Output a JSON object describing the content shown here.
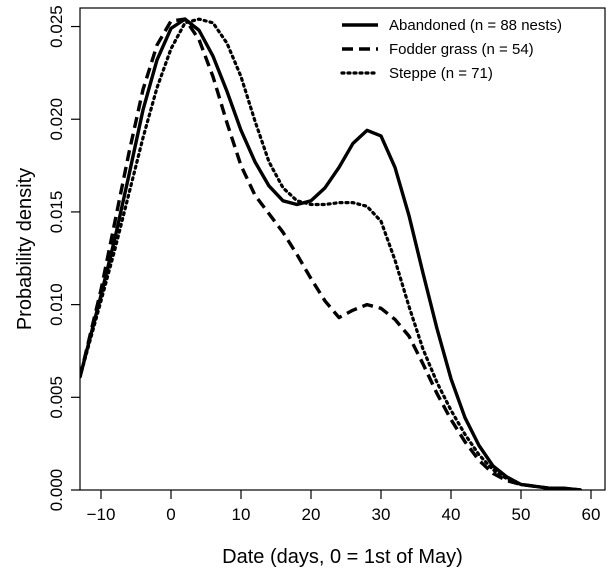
{
  "chart_data": {
    "type": "line",
    "title": "",
    "xlabel": "Date (days, 0 = 1st of May)",
    "ylabel": "Probability density",
    "xlim": [
      -13,
      62
    ],
    "ylim": [
      0,
      0.026
    ],
    "xticks": [
      -10,
      0,
      10,
      20,
      30,
      40,
      50,
      60
    ],
    "xtick_labels": [
      "−10",
      "0",
      "10",
      "20",
      "30",
      "40",
      "50",
      "60"
    ],
    "yticks": [
      0.0,
      0.005,
      0.01,
      0.015,
      0.02,
      0.025
    ],
    "ytick_labels": [
      "0.000",
      "0.005",
      "0.010",
      "0.015",
      "0.020",
      "0.025"
    ],
    "grid": false,
    "legend_position": "top-right",
    "series": [
      {
        "name": "Abandoned (n = 88 nests)",
        "style": "solid",
        "color": "#000000",
        "x": [
          -13,
          -10,
          -8,
          -6,
          -4,
          -2,
          0,
          2,
          4,
          6,
          8,
          10,
          12,
          14,
          16,
          18,
          20,
          22,
          24,
          26,
          28,
          30,
          32,
          34,
          36,
          38,
          40,
          42,
          44,
          46,
          48,
          50,
          52,
          54,
          56,
          58.5
        ],
        "y": [
          0.0061,
          0.0105,
          0.0136,
          0.017,
          0.0205,
          0.0232,
          0.0249,
          0.0254,
          0.0248,
          0.0234,
          0.0215,
          0.0194,
          0.0177,
          0.0164,
          0.0156,
          0.0154,
          0.0156,
          0.0163,
          0.0174,
          0.0187,
          0.0194,
          0.0191,
          0.0174,
          0.0148,
          0.0117,
          0.0087,
          0.006,
          0.0039,
          0.0024,
          0.0013,
          0.0007,
          0.0003,
          0.0002,
          0.0001,
          0.0001,
          0.0
        ]
      },
      {
        "name": "Fodder grass (n = 54)",
        "style": "dashed",
        "color": "#000000",
        "x": [
          -13,
          -10,
          -8,
          -6,
          -4,
          -2,
          0,
          2,
          4,
          6,
          8,
          10,
          12,
          14,
          16,
          18,
          20,
          22,
          24,
          26,
          28,
          30,
          32,
          34,
          36,
          38,
          40,
          42,
          44,
          46,
          48,
          50,
          52,
          54,
          56,
          58.5
        ],
        "y": [
          0.0061,
          0.0108,
          0.0145,
          0.0182,
          0.0216,
          0.024,
          0.0253,
          0.0254,
          0.0243,
          0.0223,
          0.0198,
          0.0175,
          0.0159,
          0.0149,
          0.0139,
          0.0127,
          0.0114,
          0.0102,
          0.0093,
          0.0097,
          0.01,
          0.0098,
          0.0092,
          0.0083,
          0.0068,
          0.0052,
          0.0038,
          0.0026,
          0.0016,
          0.0009,
          0.0005,
          0.0003,
          0.0002,
          0.0001,
          0.0001,
          0.0
        ]
      },
      {
        "name": "Steppe (n = 71)",
        "style": "dotted",
        "color": "#000000",
        "x": [
          -13,
          -10,
          -8,
          -6,
          -4,
          -2,
          0,
          2,
          4,
          6,
          8,
          10,
          12,
          14,
          16,
          18,
          20,
          22,
          24,
          26,
          28,
          30,
          32,
          34,
          36,
          38,
          40,
          42,
          44,
          46,
          48,
          50,
          52,
          54,
          56,
          58.5
        ],
        "y": [
          0.0061,
          0.0102,
          0.013,
          0.016,
          0.019,
          0.0217,
          0.0238,
          0.0252,
          0.0254,
          0.0252,
          0.0241,
          0.0223,
          0.0199,
          0.0177,
          0.0163,
          0.0156,
          0.0154,
          0.0154,
          0.0155,
          0.0155,
          0.0153,
          0.0145,
          0.0124,
          0.0099,
          0.0076,
          0.0058,
          0.0043,
          0.003,
          0.0019,
          0.0011,
          0.0006,
          0.0003,
          0.0002,
          0.0001,
          0.0001,
          0.0
        ]
      }
    ]
  }
}
